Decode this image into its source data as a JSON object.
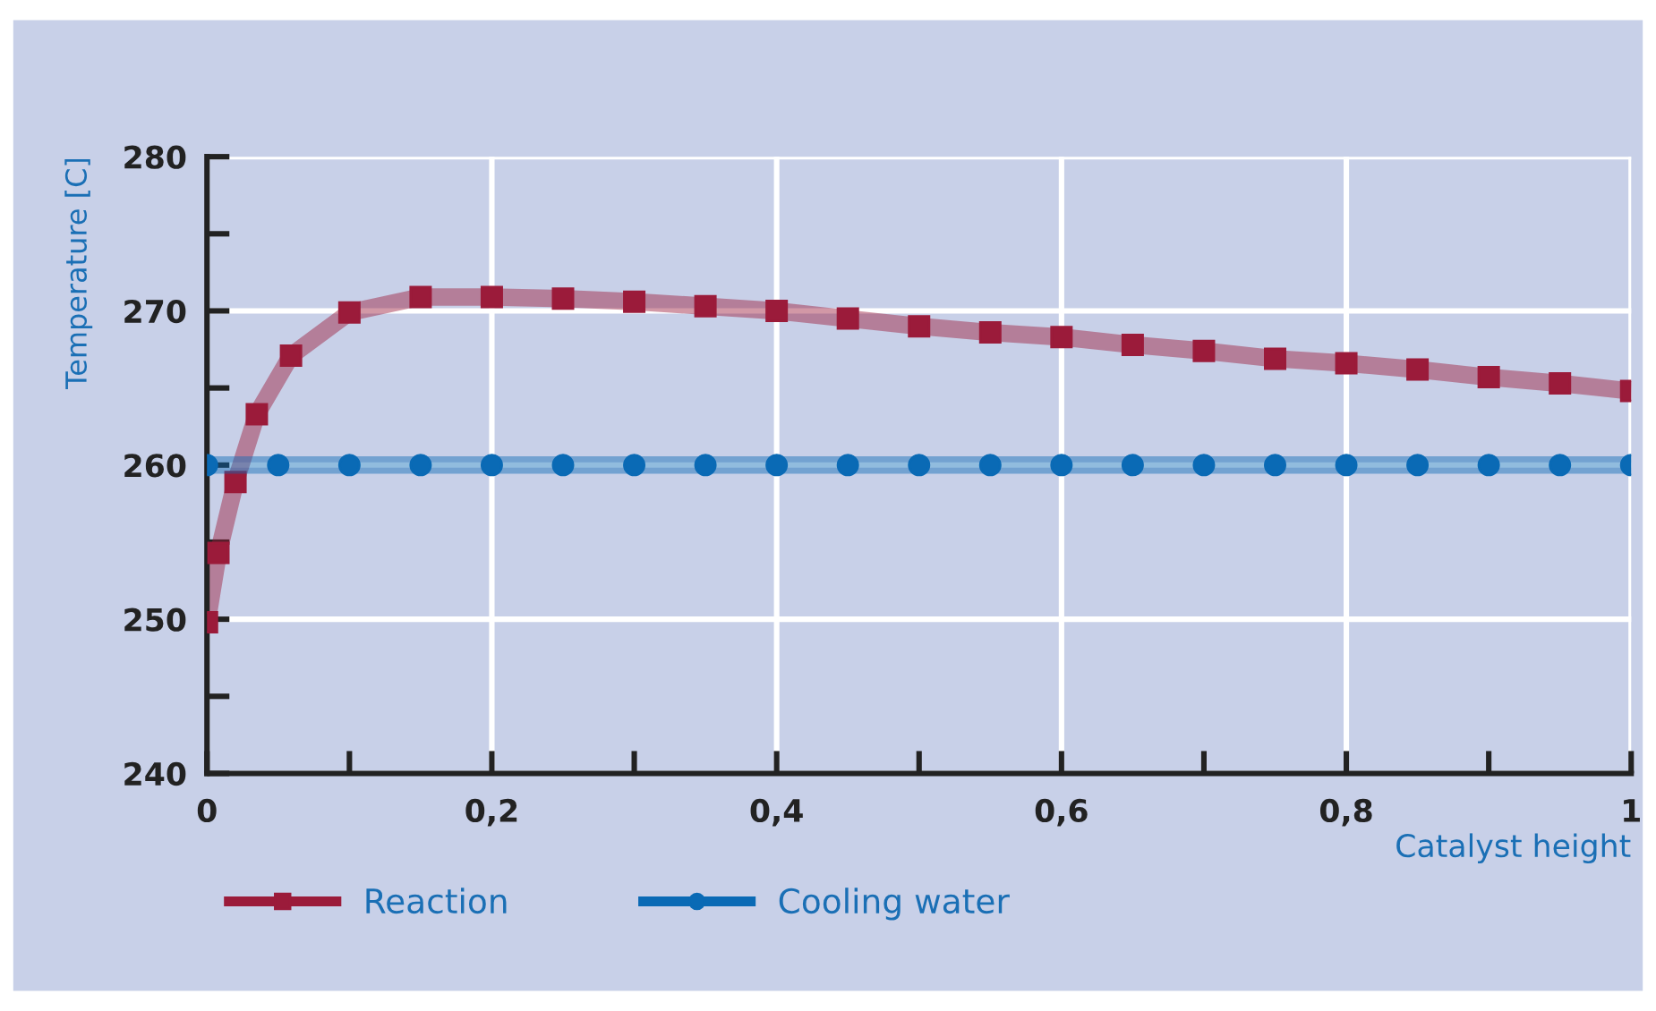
{
  "chart_data": {
    "type": "line",
    "xlabel": "Catalyst height",
    "ylabel": "Temperature [C]",
    "series": [
      {
        "name": "Reaction",
        "color": "#9b1b3a",
        "marker": "square",
        "x": [
          0,
          0.008,
          0.02,
          0.035,
          0.059,
          0.1,
          0.15,
          0.2,
          0.25,
          0.3,
          0.35,
          0.4,
          0.45,
          0.5,
          0.55,
          0.6,
          0.65,
          0.7,
          0.75,
          0.8,
          0.85,
          0.9,
          0.95,
          1.0
        ],
        "values": [
          249.8,
          254.3,
          258.9,
          263.3,
          267.1,
          269.9,
          270.9,
          270.9,
          270.8,
          270.6,
          270.3,
          270.0,
          269.5,
          269.0,
          268.6,
          268.3,
          267.8,
          267.4,
          266.9,
          266.6,
          266.2,
          265.7,
          265.3,
          264.8
        ]
      },
      {
        "name": "Cooling water",
        "color": "#0a6ab5",
        "marker": "circle",
        "x": [
          0,
          0.05,
          0.1,
          0.15,
          0.2,
          0.25,
          0.3,
          0.35,
          0.4,
          0.45,
          0.5,
          0.55,
          0.6,
          0.65,
          0.7,
          0.75,
          0.8,
          0.85,
          0.9,
          0.95,
          1.0
        ],
        "values": [
          260,
          260,
          260,
          260,
          260,
          260,
          260,
          260,
          260,
          260,
          260,
          260,
          260,
          260,
          260,
          260,
          260,
          260,
          260,
          260,
          260
        ]
      }
    ],
    "xlim": [
      0,
      1
    ],
    "ylim": [
      240,
      280
    ],
    "xticks": [
      0,
      {
        "value": 0.1,
        "label": null
      },
      {
        "value": 0.2,
        "label": "0,2"
      },
      {
        "value": 0.3,
        "label": null
      },
      {
        "value": 0.4,
        "label": "0,4"
      },
      {
        "value": 0.5,
        "label": null
      },
      {
        "value": 0.6,
        "label": "0,6"
      },
      {
        "value": 0.7,
        "label": null
      },
      {
        "value": 0.8,
        "label": "0,8"
      },
      {
        "value": 0.9,
        "label": null
      },
      1
    ],
    "yticks": [
      240,
      {
        "value": 245,
        "label": null
      },
      250,
      {
        "value": 255,
        "label": null
      },
      260,
      {
        "value": 265,
        "label": null
      },
      270,
      {
        "value": 275,
        "label": null
      },
      280
    ],
    "grid": true,
    "legend": "bottom left"
  }
}
